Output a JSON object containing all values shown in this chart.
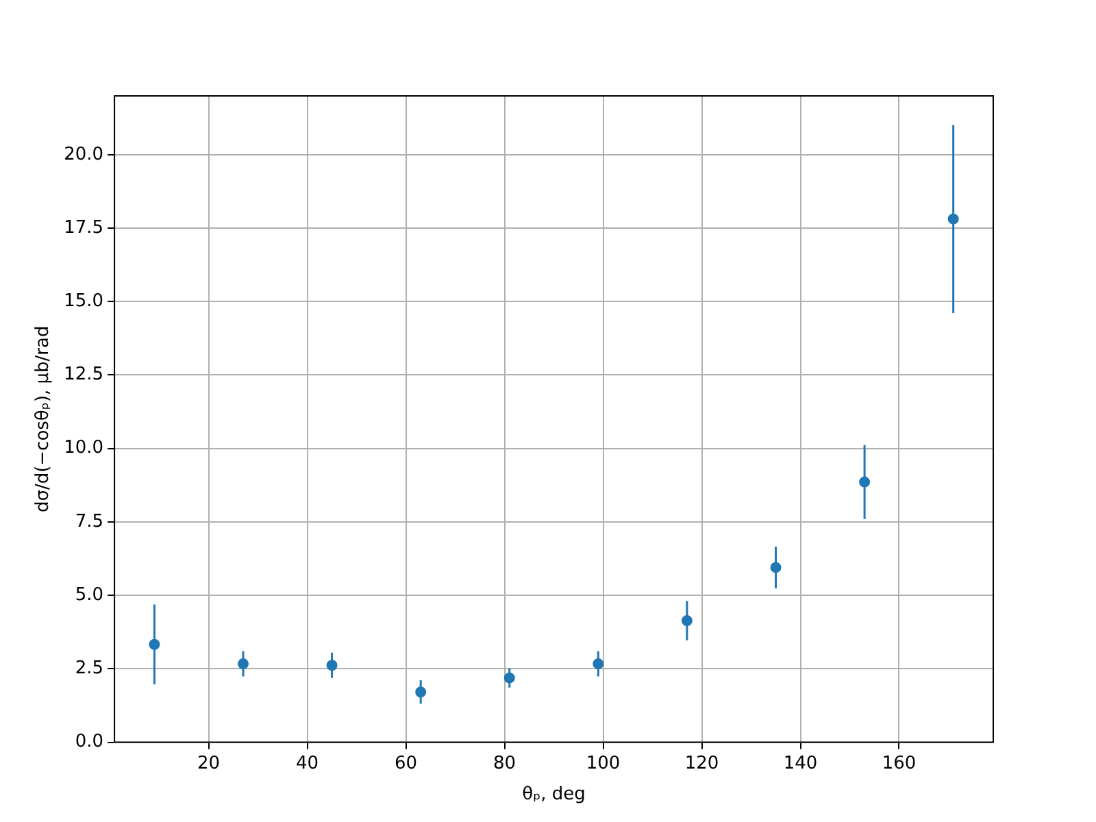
{
  "chart_data": {
    "type": "scatter",
    "xlabel": "θₚ, deg",
    "ylabel": "dσ/d(−cosθₚ), μb/rad",
    "x": [
      9,
      27,
      45,
      63,
      81,
      99,
      117,
      135,
      153,
      171
    ],
    "series": [
      {
        "color": "#1f77b4",
        "values": [
          3.33,
          2.67,
          2.62,
          1.71,
          2.19,
          2.67,
          4.14,
          5.95,
          8.86,
          17.81
        ],
        "errors": [
          1.36,
          0.43,
          0.43,
          0.4,
          0.33,
          0.43,
          0.67,
          0.71,
          1.26,
          3.2
        ]
      }
    ],
    "xlim": [
      0.9,
      179.1
    ],
    "xticks": [
      20,
      40,
      60,
      80,
      100,
      120,
      140,
      160
    ],
    "ylim": [
      0,
      22
    ],
    "yticks": [
      {
        "value": 0,
        "label": "0.0"
      },
      2.5,
      {
        "value": 5,
        "label": "5.0"
      },
      7.5,
      {
        "value": 10,
        "label": "10.0"
      },
      12.5,
      {
        "value": 15,
        "label": "15.0"
      },
      17.5,
      {
        "value": 20,
        "label": "20.0"
      }
    ],
    "grid": true,
    "marker": "circle"
  }
}
